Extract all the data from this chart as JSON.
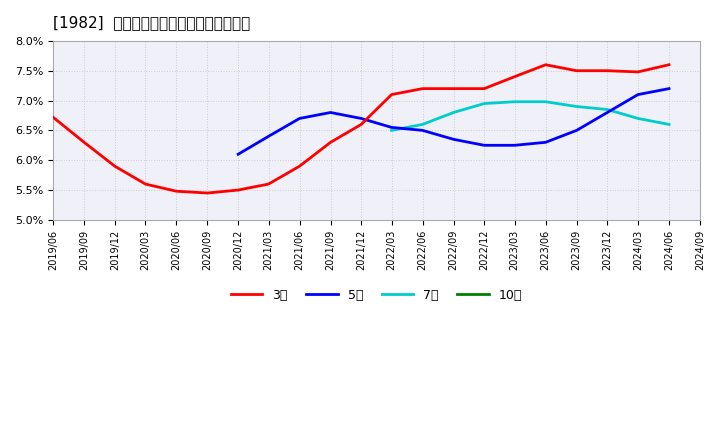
{
  "title": "[1982]  経常利益マージンの平均値の推移",
  "ylim": [
    0.05,
    0.08
  ],
  "yticks": [
    0.05,
    0.055,
    0.06,
    0.065,
    0.07,
    0.075,
    0.08
  ],
  "background_color": "#ffffff",
  "grid_color": "#cccccc",
  "series": {
    "3年": {
      "color": "#ff0000",
      "dates": [
        "2019-06-01",
        "2019-09-01",
        "2019-12-01",
        "2020-03-01",
        "2020-06-01",
        "2020-09-01",
        "2020-12-01",
        "2021-03-01",
        "2021-06-01",
        "2021-09-01",
        "2021-12-01",
        "2022-03-01",
        "2022-06-01",
        "2022-09-01",
        "2022-12-01",
        "2023-03-01",
        "2023-06-01",
        "2023-09-01",
        "2023-12-01",
        "2024-03-01",
        "2024-06-01"
      ],
      "values": [
        0.0672,
        0.063,
        0.059,
        0.056,
        0.0548,
        0.0545,
        0.055,
        0.056,
        0.059,
        0.063,
        0.066,
        0.071,
        0.072,
        0.072,
        0.072,
        0.074,
        0.076,
        0.075,
        0.075,
        0.0748,
        0.076
      ]
    },
    "5年": {
      "color": "#0000ff",
      "dates": [
        "2019-06-01",
        "2019-09-01",
        "2019-12-01",
        "2020-03-01",
        "2020-06-01",
        "2020-09-01",
        "2020-12-01",
        "2021-03-01",
        "2021-06-01",
        "2021-09-01",
        "2021-12-01",
        "2022-03-01",
        "2022-06-01",
        "2022-09-01",
        "2022-12-01",
        "2023-03-01",
        "2023-06-01",
        "2023-09-01",
        "2023-12-01",
        "2024-03-01",
        "2024-06-01"
      ],
      "values": [
        null,
        null,
        null,
        null,
        null,
        null,
        0.061,
        0.064,
        0.067,
        0.068,
        0.067,
        0.0655,
        0.065,
        0.0635,
        0.0625,
        0.0625,
        0.063,
        0.065,
        0.068,
        0.071,
        0.072
      ]
    },
    "7年": {
      "color": "#00cccc",
      "dates": [
        "2022-03-01",
        "2022-06-01",
        "2022-09-01",
        "2022-12-01",
        "2023-03-01",
        "2023-06-01",
        "2023-09-01",
        "2023-12-01",
        "2024-03-01",
        "2024-06-01"
      ],
      "values": [
        0.065,
        0.066,
        0.068,
        0.0695,
        0.0698,
        0.0698,
        0.069,
        0.0685,
        0.067,
        0.066
      ]
    },
    "10年": {
      "color": "#008000",
      "dates": [
        "2022-06-01",
        "2022-09-01",
        "2022-12-01",
        "2023-03-01",
        "2023-06-01",
        "2023-09-01",
        "2023-12-01",
        "2024-03-01",
        "2024-06-01"
      ],
      "values": [
        null,
        null,
        null,
        null,
        null,
        null,
        null,
        null,
        null
      ]
    }
  },
  "legend_labels": [
    "3年",
    "5年",
    "7年",
    "10年"
  ],
  "legend_colors": [
    "#ff0000",
    "#0000ff",
    "#00cccc",
    "#008000"
  ],
  "xticklabels": [
    "2019/06",
    "2019/09",
    "2019/12",
    "2020/03",
    "2020/06",
    "2020/09",
    "2020/12",
    "2021/03",
    "2021/06",
    "2021/09",
    "2021/12",
    "2022/03",
    "2022/06",
    "2022/09",
    "2022/12",
    "2023/03",
    "2023/06",
    "2023/09",
    "2023/12",
    "2024/03",
    "2024/06",
    "2024/09"
  ]
}
